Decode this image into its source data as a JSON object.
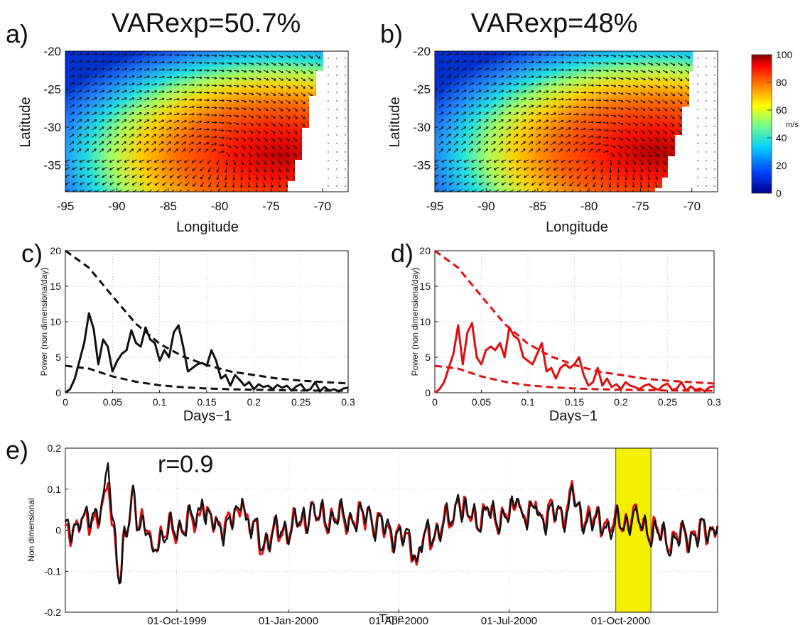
{
  "colors": {
    "black": "#111111",
    "red": "#e01010",
    "highlight": "#f5f000",
    "highlight_edge": "#555555",
    "grid": "#aaaaaa"
  },
  "panel_a": {
    "letter": "a)",
    "title": "VARexp=50.7%",
    "xlabel": "Longitude",
    "ylabel": "Latitude",
    "xticks": [
      "-95",
      "-90",
      "-85",
      "-80",
      "-75",
      "-70"
    ],
    "yticks": [
      "-20",
      "-25",
      "-30",
      "-35"
    ]
  },
  "panel_b": {
    "letter": "b)",
    "title": "VARexp=48%",
    "xlabel": "Longitude",
    "ylabel": "Latitude",
    "xticks": [
      "-95",
      "-90",
      "-85",
      "-80",
      "-75",
      "-70"
    ],
    "yticks": [
      "-20",
      "-25",
      "-30",
      "-35"
    ]
  },
  "colorbar": {
    "unit": "m/s",
    "ticks": [
      "100",
      "80",
      "60",
      "40",
      "20",
      "0"
    ],
    "colormap": [
      "#00008f",
      "#0050ff",
      "#00d0ff",
      "#60ffa0",
      "#ffff00",
      "#ff9000",
      "#ff2000",
      "#800000"
    ]
  },
  "panel_c": {
    "letter": "c)",
    "xlabel": "Days−1",
    "ylabel": "Power (non dimensiona/day)"
  },
  "panel_d": {
    "letter": "d)",
    "xlabel": "Days−1",
    "ylabel": "Power (non dimensiona/day)"
  },
  "panel_e": {
    "letter": "e)",
    "annotation": "r=0.9",
    "xlabel": "Time",
    "ylabel": "Non dimensional",
    "xticks": [
      "01-Oct-1999",
      "01-Jan-2000",
      "01-Apr-2000",
      "01-Jul-2000",
      "01-Oct-2000"
    ],
    "yticks": [
      "0.2",
      "0.1",
      "0",
      "-0.1",
      "-0.2"
    ]
  },
  "chart_data": [
    {
      "type": "heatmap",
      "panel": "a",
      "title": "VARexp=50.7%",
      "xlabel": "Longitude",
      "ylabel": "Latitude",
      "xlim": [
        -95,
        -67.5
      ],
      "ylim": [
        -38.5,
        -20
      ],
      "vector_field": true,
      "max_center": [
        -80,
        -33.5
      ],
      "colorbar": {
        "label": "m/s",
        "range": [
          0,
          100
        ]
      }
    },
    {
      "type": "heatmap",
      "panel": "b",
      "title": "VARexp=48%",
      "xlabel": "Longitude",
      "ylabel": "Latitude",
      "xlim": [
        -95,
        -67.5
      ],
      "ylim": [
        -38.5,
        -20
      ],
      "vector_field": true,
      "max_center": [
        -78.5,
        -33.5
      ],
      "colorbar": {
        "label": "m/s",
        "range": [
          0,
          100
        ]
      }
    },
    {
      "type": "line",
      "panel": "c",
      "xlabel": "Days−1",
      "ylabel": "Power (non dimensiona/day)",
      "xlim": [
        0,
        0.3
      ],
      "ylim": [
        0,
        20
      ],
      "grid": true,
      "xticks": [
        0,
        0.05,
        0.1,
        0.15,
        0.2,
        0.25,
        0.3
      ],
      "yticks": [
        0,
        5,
        10,
        15,
        20
      ],
      "series": [
        {
          "style": "solid",
          "color": "#111111",
          "x": [
            0.0,
            0.005,
            0.01,
            0.015,
            0.02,
            0.025,
            0.03,
            0.035,
            0.04,
            0.045,
            0.05,
            0.055,
            0.06,
            0.065,
            0.07,
            0.075,
            0.08,
            0.085,
            0.09,
            0.095,
            0.1,
            0.105,
            0.11,
            0.115,
            0.12,
            0.125,
            0.13,
            0.135,
            0.14,
            0.145,
            0.15,
            0.155,
            0.16,
            0.165,
            0.17,
            0.175,
            0.18,
            0.185,
            0.19,
            0.195,
            0.2,
            0.205,
            0.21,
            0.215,
            0.22,
            0.225,
            0.23,
            0.235,
            0.24,
            0.245,
            0.25,
            0.255,
            0.26,
            0.265,
            0.27,
            0.275,
            0.28,
            0.285,
            0.29,
            0.295,
            0.3
          ],
          "y": [
            0.0,
            0.5,
            2.0,
            4.5,
            7.0,
            11.2,
            9.0,
            4.0,
            7.5,
            6.5,
            3.0,
            4.5,
            5.5,
            6.0,
            8.8,
            7.0,
            6.5,
            9.2,
            7.5,
            7.0,
            4.5,
            6.0,
            5.0,
            8.5,
            9.5,
            6.5,
            3.0,
            3.5,
            4.0,
            4.2,
            3.8,
            6.0,
            4.5,
            2.0,
            2.5,
            1.0,
            2.5,
            1.8,
            1.0,
            1.5,
            0.5,
            1.2,
            0.8,
            1.0,
            0.5,
            1.1,
            0.7,
            1.0,
            0.3,
            0.9,
            1.2,
            0.3,
            0.5,
            1.5,
            0.2,
            0.8,
            0.3,
            0.5,
            0.2,
            0.6,
            0.7
          ]
        },
        {
          "style": "dashed",
          "color": "#111111",
          "name": "",
          "x": [
            0.0,
            0.025,
            0.05,
            0.075,
            0.1,
            0.125,
            0.15,
            0.175,
            0.2,
            0.225,
            0.25,
            0.275,
            0.3
          ],
          "y": [
            20.0,
            17.6,
            13.6,
            9.7,
            6.9,
            5.1,
            3.9,
            3.0,
            2.5,
            2.0,
            1.7,
            1.5,
            1.3
          ]
        },
        {
          "style": "dashed",
          "color": "#111111",
          "name": "",
          "x": [
            0.0,
            0.025,
            0.05,
            0.075,
            0.1,
            0.125,
            0.15,
            0.175,
            0.2,
            0.225,
            0.25,
            0.275,
            0.3
          ],
          "y": [
            3.8,
            3.4,
            2.3,
            1.55,
            1.05,
            0.78,
            0.6,
            0.5,
            0.42,
            0.37,
            0.33,
            0.3,
            0.28
          ]
        }
      ]
    },
    {
      "type": "line",
      "panel": "d",
      "xlabel": "Days−1",
      "ylabel": "Power (non dimensiona/day)",
      "xlim": [
        0,
        0.3
      ],
      "ylim": [
        0,
        20
      ],
      "grid": true,
      "xticks": [
        0,
        0.05,
        0.1,
        0.15,
        0.2,
        0.25,
        0.3
      ],
      "yticks": [
        0,
        5,
        10,
        15,
        20
      ],
      "series": [
        {
          "style": "solid",
          "color": "#e01010",
          "x": [
            0.0,
            0.005,
            0.01,
            0.015,
            0.02,
            0.025,
            0.03,
            0.035,
            0.04,
            0.045,
            0.05,
            0.055,
            0.06,
            0.065,
            0.07,
            0.075,
            0.08,
            0.085,
            0.09,
            0.095,
            0.1,
            0.105,
            0.11,
            0.115,
            0.12,
            0.125,
            0.13,
            0.135,
            0.14,
            0.145,
            0.15,
            0.155,
            0.16,
            0.165,
            0.17,
            0.175,
            0.18,
            0.185,
            0.19,
            0.195,
            0.2,
            0.205,
            0.21,
            0.215,
            0.22,
            0.225,
            0.23,
            0.235,
            0.24,
            0.245,
            0.25,
            0.255,
            0.26,
            0.265,
            0.27,
            0.275,
            0.28,
            0.285,
            0.29,
            0.295,
            0.3
          ],
          "y": [
            0.0,
            0.5,
            1.5,
            3.5,
            5.5,
            9.5,
            4.0,
            8.5,
            9.8,
            5.0,
            4.0,
            6.0,
            6.5,
            6.0,
            7.0,
            5.0,
            9.2,
            8.0,
            7.5,
            5.0,
            4.5,
            4.0,
            5.5,
            7.0,
            3.0,
            3.5,
            2.0,
            3.5,
            4.0,
            3.5,
            4.0,
            5.0,
            2.5,
            1.0,
            1.5,
            3.5,
            1.0,
            2.0,
            0.8,
            1.2,
            0.5,
            1.5,
            1.0,
            0.8,
            0.5,
            1.0,
            1.2,
            0.7,
            0.4,
            1.0,
            1.3,
            0.4,
            0.6,
            1.5,
            0.3,
            0.9,
            0.4,
            0.6,
            0.2,
            0.8,
            0.9
          ]
        },
        {
          "style": "dashed",
          "color": "#e01010",
          "name": "",
          "x": [
            0.0,
            0.025,
            0.05,
            0.075,
            0.1,
            0.125,
            0.15,
            0.175,
            0.2,
            0.225,
            0.25,
            0.275,
            0.3
          ],
          "y": [
            20.0,
            17.6,
            13.6,
            9.7,
            6.9,
            5.1,
            3.9,
            3.0,
            2.5,
            2.0,
            1.7,
            1.5,
            1.3
          ]
        },
        {
          "style": "dashed",
          "color": "#e01010",
          "name": "",
          "x": [
            0.0,
            0.025,
            0.05,
            0.075,
            0.1,
            0.125,
            0.15,
            0.175,
            0.2,
            0.225,
            0.25,
            0.275,
            0.3
          ],
          "y": [
            3.8,
            3.4,
            2.3,
            1.55,
            1.05,
            0.78,
            0.6,
            0.5,
            0.42,
            0.37,
            0.33,
            0.3,
            0.28
          ]
        }
      ]
    },
    {
      "type": "line",
      "panel": "e",
      "xlabel": "Time",
      "ylabel": "Non dimensional",
      "ylim": [
        -0.2,
        0.2
      ],
      "grid": true,
      "x_type": "date",
      "xlim": [
        "1999-07-01",
        "2000-12-20"
      ],
      "xticks": [
        "1999-10-01",
        "2000-01-01",
        "2000-04-01",
        "2000-07-01",
        "2000-10-01"
      ],
      "highlight": [
        "2000-09-27",
        "2000-10-26"
      ],
      "annotation": "r=0.9",
      "series": [
        {
          "color": "#e01010",
          "style": "solid",
          "x": [
            "1999-07-01",
            "1999-07-15",
            "1999-08-05",
            "1999-08-15",
            "1999-08-26",
            "1999-09-11",
            "1999-10-22",
            "1999-11-05",
            "1999-11-24",
            "1999-12-10",
            "2000-01-20",
            "2000-03-07",
            "2000-04-16",
            "2000-05-20",
            "2000-06-13",
            "2000-07-08",
            "2000-07-23",
            "2000-08-22",
            "2000-09-18",
            "2000-10-12",
            "2000-11-10",
            "2000-12-20"
          ],
          "y": [
            0.01,
            0.03,
            0.12,
            -0.14,
            0.11,
            -0.05,
            0.07,
            0.02,
            0.08,
            -0.06,
            0.07,
            0.06,
            -0.09,
            0.09,
            0.06,
            0.09,
            0.07,
            0.12,
            0.02,
            0.06,
            -0.05,
            0.01
          ]
        },
        {
          "color": "#111111",
          "style": "solid",
          "x": [
            "1999-07-01",
            "1999-07-15",
            "1999-08-05",
            "1999-08-15",
            "1999-08-26",
            "1999-09-11",
            "1999-10-22",
            "1999-11-05",
            "1999-11-24",
            "1999-12-10",
            "2000-01-20",
            "2000-03-07",
            "2000-04-16",
            "2000-05-20",
            "2000-06-13",
            "2000-07-08",
            "2000-07-23",
            "2000-08-22",
            "2000-09-18",
            "2000-10-12",
            "2000-11-10",
            "2000-12-20"
          ],
          "y": [
            0.02,
            0.03,
            0.17,
            -0.14,
            0.11,
            -0.06,
            0.08,
            0.01,
            0.08,
            -0.05,
            0.07,
            0.06,
            -0.08,
            0.09,
            0.06,
            0.09,
            0.06,
            0.11,
            0.01,
            0.05,
            -0.06,
            0.01
          ]
        }
      ]
    }
  ]
}
